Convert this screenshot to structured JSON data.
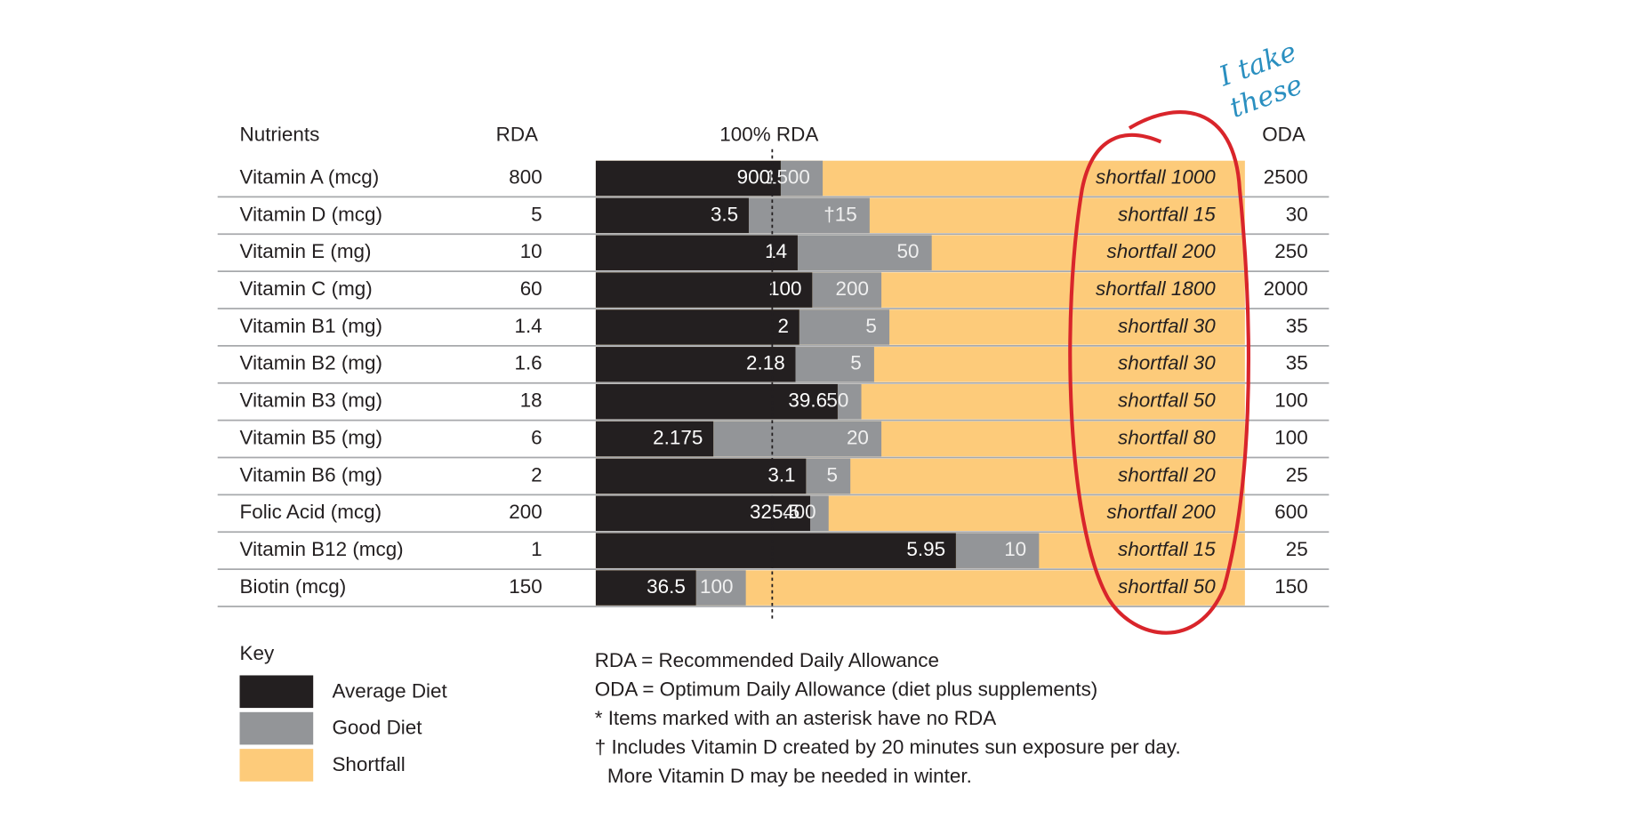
{
  "chart_data": {
    "type": "bar",
    "headers": {
      "nutrients": "Nutrients",
      "rda": "RDA",
      "rda_line": "100% RDA",
      "oda": "ODA"
    },
    "rows": [
      {
        "nutrient": "Vitamin A (mcg)",
        "rda": 800,
        "average": 900,
        "good": 1500,
        "shortfall": "shortfall 1000",
        "oda": 2500
      },
      {
        "nutrient": "Vitamin D (mcg)",
        "rda": 5,
        "average": 3.5,
        "good": 15,
        "good_label": "†15",
        "shortfall": "shortfall 15",
        "oda": 30
      },
      {
        "nutrient": "Vitamin E (mg)",
        "rda": 10,
        "average": 14,
        "good": 50,
        "shortfall": "shortfall 200",
        "oda": 250
      },
      {
        "nutrient": "Vitamin C (mg)",
        "rda": 60,
        "average": 100,
        "good": 200,
        "shortfall": "shortfall 1800",
        "oda": 2000
      },
      {
        "nutrient": "Vitamin B1 (mg)",
        "rda": 1.4,
        "average": 2,
        "good": 5,
        "shortfall": "shortfall 30",
        "oda": 35
      },
      {
        "nutrient": "Vitamin B2 (mg)",
        "rda": 1.6,
        "average": 2.18,
        "good": 5,
        "shortfall": "shortfall 30",
        "oda": 35
      },
      {
        "nutrient": "Vitamin B3 (mg)",
        "rda": 18,
        "average": 39.6,
        "good": 50,
        "shortfall": "shortfall 50",
        "oda": 100
      },
      {
        "nutrient": "Vitamin B5 (mg)",
        "rda": 6,
        "average": 2.175,
        "good": 20,
        "shortfall": "shortfall 80",
        "oda": 100
      },
      {
        "nutrient": "Vitamin B6 (mg)",
        "rda": 2,
        "average": 3.1,
        "good": 5,
        "shortfall": "shortfall 20",
        "oda": 25
      },
      {
        "nutrient": "Folic Acid (mcg)",
        "rda": 200,
        "average": 325.5,
        "good": 400,
        "shortfall": "shortfall 200",
        "oda": 600
      },
      {
        "nutrient": "Vitamin B12 (mcg)",
        "rda": 1,
        "average": 5.95,
        "good": 10,
        "shortfall": "shortfall 15",
        "oda": 25
      },
      {
        "nutrient": "Biotin (mcg)",
        "rda": 150,
        "average": 36.5,
        "good": 100,
        "shortfall": "shortfall 50",
        "oda": 150
      }
    ],
    "key": {
      "title": "Key",
      "items": [
        {
          "label": "Average Diet",
          "color": "#231f20"
        },
        {
          "label": "Good Diet",
          "color": "#939598"
        },
        {
          "label": "Shortfall",
          "color": "#fdcb7a"
        }
      ]
    },
    "notes": [
      "RDA = Recommended Daily Allowance",
      "ODA = Optimum Daily Allowance (diet plus supplements)",
      "* Items marked with an asterisk have no RDA",
      "† Includes Vitamin D created by 20 minutes sun exposure per day.",
      "More Vitamin D may be needed in winter."
    ],
    "annotation": [
      "I take",
      "these"
    ]
  }
}
